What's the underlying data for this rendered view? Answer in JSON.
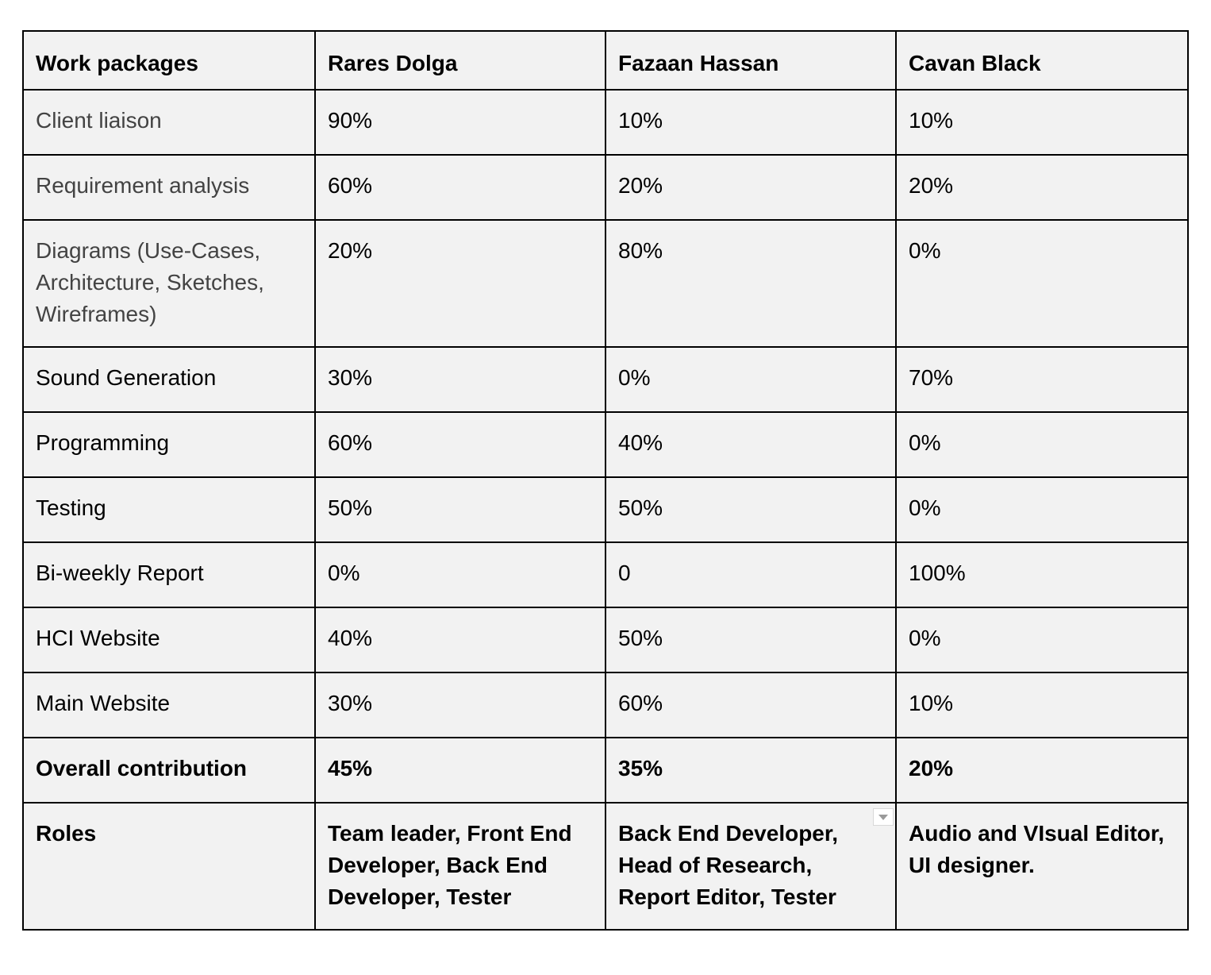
{
  "table": {
    "headers": [
      "Work packages",
      "Rares Dolga",
      "Fazaan Hassan",
      "Cavan Black"
    ],
    "rows": [
      {
        "package": "Client liaison",
        "values": [
          "90%",
          "10%",
          "10%"
        ]
      },
      {
        "package": "Requirement analysis",
        "values": [
          "60%",
          "20%",
          "20%"
        ]
      },
      {
        "package": "Diagrams (Use-Cases, Architecture, Sketches, Wireframes)",
        "values": [
          "20%",
          "80%",
          "0%"
        ]
      },
      {
        "package": "Sound Generation",
        "values": [
          "30%",
          "0%",
          "70%"
        ]
      },
      {
        "package": "Programming",
        "values": [
          "60%",
          "40%",
          "0%"
        ]
      },
      {
        "package": "Testing",
        "values": [
          "50%",
          "50%",
          "0%"
        ]
      },
      {
        "package": "Bi-weekly Report",
        "values": [
          "0%",
          "0",
          "100%"
        ]
      },
      {
        "package": "HCI Website",
        "values": [
          "40%",
          "50%",
          "0%"
        ]
      },
      {
        "package": "Main Website",
        "values": [
          "30%",
          "60%",
          "10%"
        ]
      }
    ],
    "overall": {
      "label": "Overall contribution",
      "values": [
        "45%",
        "35%",
        "20%"
      ]
    },
    "roles": {
      "label": "Roles",
      "values": [
        "Team leader, Front End Developer, Back End Developer, Tester",
        "Back End Developer, Head of Research, Report Editor, Tester",
        "Audio and VIsual Editor, UI designer."
      ]
    }
  }
}
